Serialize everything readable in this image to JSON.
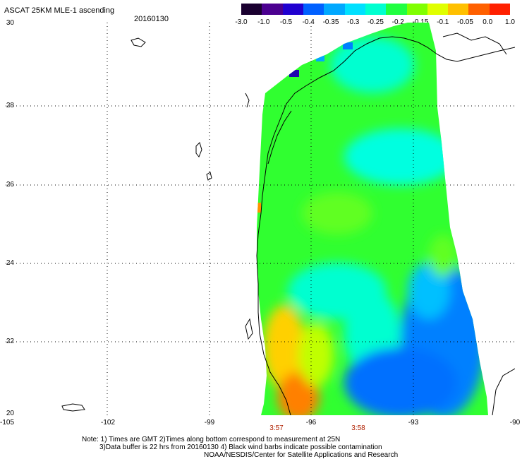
{
  "header": {
    "title": "ASCAT 25KM MLE-1 ascending",
    "date": "20160130"
  },
  "colorbar": {
    "labels": [
      "-3.0",
      "-1.0",
      "-0.5",
      "-0.4",
      "-0.35",
      "-0.3",
      "-0.25",
      "-0.2",
      "-0.15",
      "-0.1",
      "-0.05",
      "0.0",
      "1.0"
    ],
    "colors": [
      "#1a0030",
      "#4b0090",
      "#2000d0",
      "#0060ff",
      "#00a8ff",
      "#00e0ff",
      "#00ffd0",
      "#20ff40",
      "#80ff00",
      "#e0ff00",
      "#ffc000",
      "#ff6000",
      "#ff2000"
    ]
  },
  "axes": {
    "lat_labels": [
      "30",
      "28",
      "26",
      "24",
      "22",
      "20"
    ],
    "lon_labels": [
      "-105",
      "-102",
      "-99",
      "-96",
      "-93",
      "-90"
    ]
  },
  "time_labels": [
    "3:57",
    "3:58"
  ],
  "notes": {
    "line1": "Note: 1) Times are GMT 2)Times along bottom correspond to measurement at 25N",
    "line2": "3)Data buffer is 22 hrs from 20160130 4) Black wind barbs indicate possible contamination",
    "line3": "NOAA/NESDIS/Center for Satellite Applications and Research"
  }
}
